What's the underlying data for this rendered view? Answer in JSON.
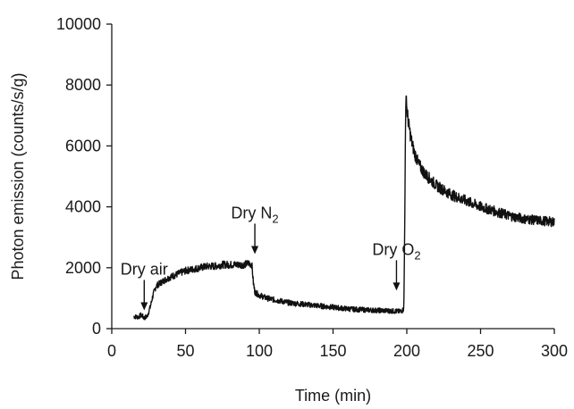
{
  "chart_data": {
    "type": "line",
    "title": "",
    "xlabel": "Time (min)",
    "ylabel": "Photon emission (counts/s/g)",
    "xlim": [
      0,
      300
    ],
    "ylim": [
      0,
      10000
    ],
    "xticks": [
      0,
      50,
      100,
      150,
      200,
      250,
      300
    ],
    "yticks": [
      0,
      2000,
      4000,
      6000,
      8000,
      10000
    ],
    "xtick_labels": [
      "0",
      "50",
      "100",
      "150",
      "200",
      "250",
      "300"
    ],
    "ytick_labels": [
      "0",
      "2000",
      "4000",
      "6000",
      "8000",
      "10000"
    ],
    "grid": false,
    "legend": "none",
    "series": [
      {
        "x": [
          15,
          18,
          20,
          22,
          24,
          26,
          28,
          30,
          33,
          36,
          40,
          45,
          50,
          55,
          60,
          65,
          70,
          75,
          80,
          85,
          90,
          93,
          95,
          96,
          97,
          100,
          105,
          110,
          120,
          130,
          140,
          150,
          160,
          170,
          180,
          190,
          195,
          197,
          198,
          198.5,
          199,
          199.5,
          200,
          201,
          203,
          205,
          208,
          212,
          216,
          220,
          225,
          230,
          240,
          250,
          260,
          270,
          280,
          290,
          300
        ],
        "y": [
          400,
          380,
          450,
          350,
          400,
          700,
          1100,
          1400,
          1500,
          1600,
          1700,
          1800,
          1900,
          1950,
          2000,
          2050,
          2050,
          2100,
          2100,
          2100,
          2100,
          2150,
          2100,
          1500,
          1200,
          1100,
          1000,
          950,
          850,
          800,
          750,
          700,
          650,
          620,
          600,
          580,
          560,
          600,
          650,
          3000,
          6000,
          7900,
          7200,
          6800,
          6200,
          5800,
          5400,
          5100,
          4900,
          4700,
          4550,
          4400,
          4200,
          4000,
          3850,
          3700,
          3600,
          3550,
          3500
        ]
      }
    ],
    "annotations": [
      {
        "text": "Dry air",
        "sub": "",
        "x": 22,
        "y_tip": 600
      },
      {
        "text": "Dry N",
        "sub": "2",
        "x": 97,
        "y_tip": 2450
      },
      {
        "text": "Dry O",
        "sub": "2",
        "x": 193,
        "y_tip": 1250
      }
    ]
  }
}
